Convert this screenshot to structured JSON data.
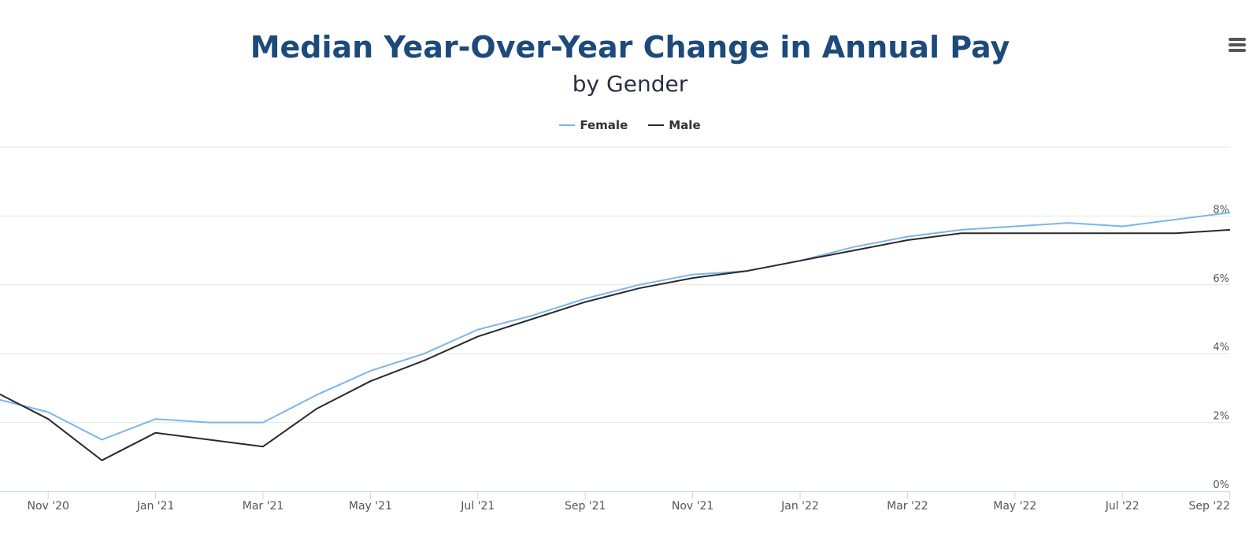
{
  "menu": {
    "icon": "hamburger-menu-icon"
  },
  "chart_data": {
    "type": "line",
    "title": "Median Year-Over-Year Change in Annual Pay",
    "subtitle": "by Gender",
    "xlabel": "",
    "ylabel": "",
    "x": [
      "Oct '20",
      "Nov '20",
      "Dec '20",
      "Jan '21",
      "Feb '21",
      "Mar '21",
      "Apr '21",
      "May '21",
      "Jun '21",
      "Jul '21",
      "Aug '21",
      "Sep '21",
      "Oct '21",
      "Nov '21",
      "Dec '21",
      "Jan '22",
      "Feb '22",
      "Mar '22",
      "Apr '22",
      "May '22",
      "Jun '22",
      "Jul '22",
      "Aug '22",
      "Sep '22"
    ],
    "x_tick_labels": [
      "Nov '20",
      "Jan '21",
      "Mar '21",
      "May '21",
      "Jul '21",
      "Sep '21",
      "Nov '21",
      "Jan '22",
      "Mar '22",
      "May '22",
      "Jul '22",
      "Sep '22"
    ],
    "y_tick_labels": [
      "0%",
      "2%",
      "4%",
      "6%",
      "8%"
    ],
    "y_ticks": [
      0,
      2,
      4,
      6,
      8
    ],
    "ylim": [
      0,
      10
    ],
    "y_axis_side": "right",
    "grid": true,
    "legend_position": "top-center",
    "series": [
      {
        "name": "Female",
        "color": "#7cb5ec",
        "values": [
          2.7,
          2.3,
          1.5,
          2.1,
          2.0,
          2.0,
          2.8,
          3.5,
          4.0,
          4.7,
          5.1,
          5.6,
          6.0,
          6.3,
          6.4,
          6.7,
          7.1,
          7.4,
          7.6,
          7.7,
          7.8,
          7.7,
          7.9,
          8.1
        ]
      },
      {
        "name": "Male",
        "color": "#2a2a2a",
        "values": [
          2.9,
          2.1,
          0.9,
          1.7,
          1.5,
          1.3,
          2.4,
          3.2,
          3.8,
          4.5,
          5.0,
          5.5,
          5.9,
          6.2,
          6.4,
          6.7,
          7.0,
          7.3,
          7.5,
          7.5,
          7.5,
          7.5,
          7.5,
          7.6
        ]
      }
    ]
  }
}
